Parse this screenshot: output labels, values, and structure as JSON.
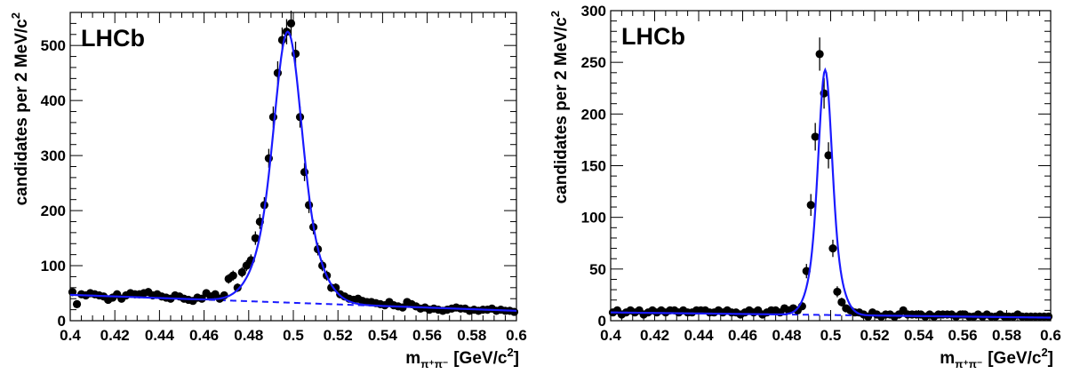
{
  "chart_data": [
    {
      "type": "scatter",
      "experiment_label": "LHCb",
      "xlabel": "m_{π⁺π⁻} [GeV/c^{2}]",
      "xlabel_main": "m",
      "xlabel_sub": "π⁺π⁻",
      "xlabel_unit": "[GeV/c",
      "xlabel_unit_sup": "2",
      "xlabel_unit_close": "]",
      "ylabel": "candidates per 2 MeV/c^{2}",
      "ylabel_main": "candidates per 2 MeV/c",
      "ylabel_sup": "2",
      "xlim": [
        0.4,
        0.6
      ],
      "ylim": [
        0,
        560
      ],
      "xticks": [
        0.4,
        0.42,
        0.44,
        0.46,
        0.48,
        0.5,
        0.52,
        0.54,
        0.56,
        0.58,
        0.6
      ],
      "xtick_labels": [
        "0.4",
        "0.42",
        "0.44",
        "0.46",
        "0.48",
        "0.5",
        "0.52",
        "0.54",
        "0.56",
        "0.58",
        "0.6"
      ],
      "yticks": [
        0,
        100,
        200,
        300,
        400,
        500
      ],
      "ytick_labels": [
        "0",
        "100",
        "200",
        "300",
        "400",
        "500"
      ],
      "colors": {
        "data": "#000000",
        "fit": "#1a1aff",
        "background": "#1a1aff"
      },
      "series": [
        {
          "kind": "data",
          "x": [
            0.401,
            0.403,
            0.405,
            0.407,
            0.409,
            0.411,
            0.413,
            0.415,
            0.417,
            0.419,
            0.421,
            0.423,
            0.425,
            0.427,
            0.429,
            0.431,
            0.433,
            0.435,
            0.437,
            0.439,
            0.441,
            0.443,
            0.445,
            0.447,
            0.449,
            0.451,
            0.453,
            0.455,
            0.457,
            0.459,
            0.461,
            0.463,
            0.465,
            0.467,
            0.469,
            0.471,
            0.473,
            0.475,
            0.477,
            0.479,
            0.481,
            0.483,
            0.485,
            0.487,
            0.489,
            0.491,
            0.493,
            0.495,
            0.497,
            0.499,
            0.501,
            0.503,
            0.505,
            0.507,
            0.509,
            0.511,
            0.513,
            0.515,
            0.517,
            0.519,
            0.521,
            0.523,
            0.525,
            0.527,
            0.529,
            0.531,
            0.533,
            0.535,
            0.537,
            0.539,
            0.541,
            0.543,
            0.545,
            0.547,
            0.549,
            0.551,
            0.553,
            0.555,
            0.557,
            0.559,
            0.561,
            0.563,
            0.565,
            0.567,
            0.569,
            0.571,
            0.573,
            0.575,
            0.577,
            0.579,
            0.581,
            0.583,
            0.585,
            0.587,
            0.589,
            0.591,
            0.593,
            0.595,
            0.597,
            0.599
          ],
          "y": [
            52,
            30,
            48,
            46,
            50,
            48,
            46,
            44,
            38,
            42,
            48,
            40,
            46,
            50,
            48,
            48,
            50,
            52,
            46,
            48,
            44,
            42,
            40,
            46,
            44,
            40,
            38,
            36,
            42,
            40,
            50,
            44,
            48,
            40,
            46,
            76,
            82,
            60,
            88,
            100,
            110,
            150,
            180,
            210,
            295,
            370,
            450,
            510,
            525,
            540,
            485,
            370,
            270,
            210,
            170,
            130,
            100,
            82,
            60,
            60,
            48,
            44,
            40,
            38,
            40,
            36,
            34,
            34,
            32,
            30,
            28,
            34,
            28,
            26,
            24,
            34,
            30,
            26,
            22,
            24,
            20,
            22,
            20,
            18,
            20,
            22,
            24,
            22,
            22,
            18,
            20,
            18,
            20,
            20,
            22,
            18,
            20,
            18,
            18,
            16
          ]
        },
        {
          "kind": "fit",
          "signal": {
            "mean": 0.4975,
            "amplitude": 492,
            "sigma_core": 0.0055,
            "sigma_wide": 0.0105,
            "frac_core": 0.6
          },
          "background": {
            "a": 47,
            "b": 18
          }
        }
      ]
    },
    {
      "type": "scatter",
      "experiment_label": "LHCb",
      "xlabel": "m_{π⁺π⁻} [GeV/c^{2}]",
      "xlabel_main": "m",
      "xlabel_sub": "π⁺π⁻",
      "xlabel_unit": "[GeV/c",
      "xlabel_unit_sup": "2",
      "xlabel_unit_close": "]",
      "ylabel": "candidates per 2 MeV/c^{2}",
      "ylabel_main": "candidates per 2 MeV/c",
      "ylabel_sup": "2",
      "xlim": [
        0.4,
        0.6
      ],
      "ylim": [
        0,
        300
      ],
      "xticks": [
        0.4,
        0.42,
        0.44,
        0.46,
        0.48,
        0.5,
        0.52,
        0.54,
        0.56,
        0.58,
        0.6
      ],
      "xtick_labels": [
        "0.4",
        "0.42",
        "0.44",
        "0.46",
        "0.48",
        "0.5",
        "0.52",
        "0.54",
        "0.56",
        "0.58",
        "0.6"
      ],
      "yticks": [
        0,
        50,
        100,
        150,
        200,
        250,
        300
      ],
      "ytick_labels": [
        "0",
        "50",
        "100",
        "150",
        "200",
        "250",
        "300"
      ],
      "colors": {
        "data": "#000000",
        "fit": "#1a1aff",
        "background": "#1a1aff"
      },
      "series": [
        {
          "kind": "data",
          "x": [
            0.401,
            0.403,
            0.405,
            0.407,
            0.409,
            0.411,
            0.413,
            0.415,
            0.417,
            0.419,
            0.421,
            0.423,
            0.425,
            0.427,
            0.429,
            0.431,
            0.433,
            0.435,
            0.437,
            0.439,
            0.441,
            0.443,
            0.445,
            0.447,
            0.449,
            0.451,
            0.453,
            0.455,
            0.457,
            0.459,
            0.461,
            0.463,
            0.465,
            0.467,
            0.469,
            0.471,
            0.473,
            0.475,
            0.477,
            0.479,
            0.481,
            0.483,
            0.485,
            0.487,
            0.489,
            0.491,
            0.493,
            0.495,
            0.497,
            0.499,
            0.501,
            0.503,
            0.505,
            0.507,
            0.509,
            0.511,
            0.513,
            0.515,
            0.517,
            0.519,
            0.521,
            0.523,
            0.525,
            0.527,
            0.529,
            0.531,
            0.533,
            0.535,
            0.537,
            0.539,
            0.541,
            0.543,
            0.545,
            0.547,
            0.549,
            0.551,
            0.553,
            0.555,
            0.557,
            0.559,
            0.561,
            0.563,
            0.565,
            0.567,
            0.569,
            0.571,
            0.573,
            0.575,
            0.577,
            0.579,
            0.581,
            0.583,
            0.585,
            0.587,
            0.589,
            0.591,
            0.593,
            0.595,
            0.597,
            0.599
          ],
          "y": [
            8,
            10,
            6,
            8,
            10,
            8,
            10,
            6,
            8,
            10,
            8,
            10,
            8,
            10,
            10,
            8,
            10,
            8,
            8,
            10,
            10,
            10,
            8,
            8,
            10,
            8,
            10,
            8,
            8,
            6,
            8,
            10,
            8,
            10,
            6,
            8,
            10,
            10,
            8,
            12,
            10,
            12,
            10,
            14,
            48,
            112,
            178,
            258,
            220,
            160,
            70,
            28,
            18,
            12,
            10,
            8,
            8,
            6,
            4,
            8,
            6,
            4,
            6,
            6,
            4,
            6,
            10,
            6,
            6,
            6,
            6,
            4,
            6,
            4,
            6,
            6,
            6,
            6,
            4,
            6,
            6,
            4,
            4,
            6,
            4,
            6,
            4,
            4,
            6,
            4,
            4,
            4,
            6,
            4,
            4,
            4,
            4,
            4,
            4,
            4
          ]
        },
        {
          "kind": "fit",
          "signal": {
            "mean": 0.4975,
            "amplitude": 237,
            "sigma_core": 0.0028,
            "sigma_wide": 0.0055,
            "frac_core": 0.65
          },
          "background": {
            "a": 8,
            "b": 3
          }
        }
      ]
    }
  ]
}
